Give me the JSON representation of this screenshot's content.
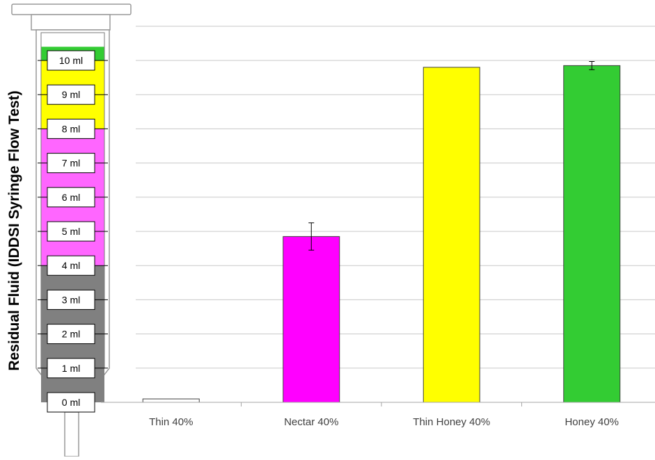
{
  "chart_data": {
    "type": "bar",
    "ylabel": "Residual Fluid (IDDSI Syringe Flow Test)",
    "y_unit_labels": [
      "0 ml",
      "1 ml",
      "2 ml",
      "3 ml",
      "4 ml",
      "5 ml",
      "6 ml",
      "7 ml",
      "8 ml",
      "9 ml",
      "10 ml"
    ],
    "ylim": [
      0,
      11
    ],
    "grid": true,
    "legend": "none",
    "categories": [
      "Thin 40%",
      "Nectar 40%",
      "Thin Honey 40%",
      "Honey 40%"
    ],
    "values": [
      0.1,
      4.85,
      9.8,
      9.85
    ],
    "errors": [
      0,
      0.4,
      0,
      0.12
    ],
    "bar_colors": [
      "#ffffff",
      "#ff00ff",
      "#ffff00",
      "#33cc33"
    ],
    "syringe_bands": [
      {
        "from": 0,
        "to": 4,
        "color": "#808080"
      },
      {
        "from": 4,
        "to": 8,
        "color": "#ff66ff"
      },
      {
        "from": 8,
        "to": 10,
        "color": "#ffff00"
      },
      {
        "from": 10,
        "to": 10.4,
        "color": "#33cc33"
      }
    ]
  }
}
